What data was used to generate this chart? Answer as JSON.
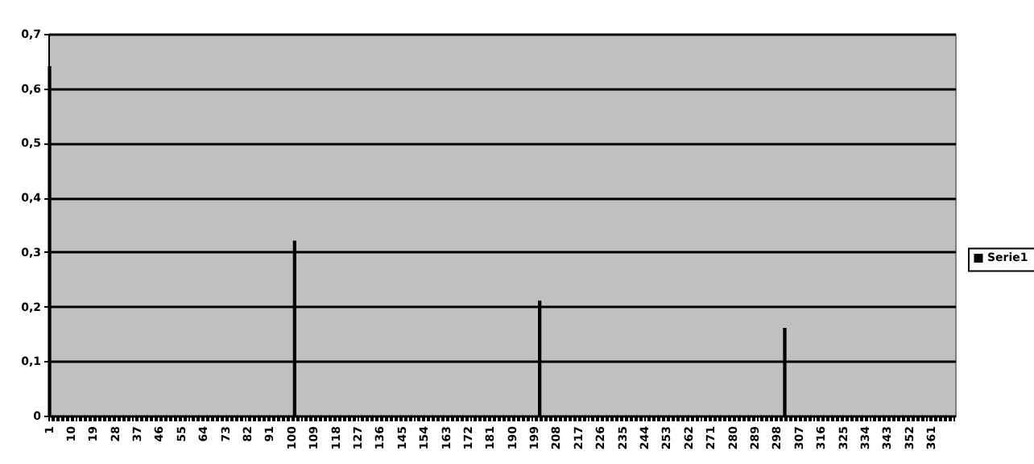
{
  "chart_data": {
    "type": "bar",
    "categories": [
      "1",
      null,
      null,
      null,
      null,
      null,
      null,
      null,
      null,
      "10",
      null,
      null,
      null,
      null,
      null,
      null,
      null,
      null,
      "19",
      null,
      null,
      null,
      null,
      null,
      null,
      null,
      null,
      "28",
      null,
      null,
      null,
      null,
      null,
      null,
      null,
      null,
      "37",
      null,
      null,
      null,
      null,
      null,
      null,
      null,
      null,
      "46",
      null,
      null,
      null,
      null,
      null,
      null,
      null,
      null,
      "55",
      null,
      null,
      null,
      null,
      null,
      null,
      null,
      null,
      "64",
      null,
      null,
      null,
      null,
      null,
      null,
      null,
      null,
      "73",
      null,
      null,
      null,
      null,
      null,
      null,
      null,
      null,
      "82",
      null,
      null,
      null,
      null,
      null,
      null,
      null,
      null,
      "91",
      null,
      null,
      null,
      null,
      null,
      null,
      null,
      null,
      "100",
      null,
      null,
      null,
      null,
      null,
      null,
      null,
      null,
      "109",
      null,
      null,
      null,
      null,
      null,
      null,
      null,
      null,
      "118",
      null,
      null,
      null,
      null,
      null,
      null,
      null,
      null,
      "127",
      null,
      null,
      null,
      null,
      null,
      null,
      null,
      null,
      "136",
      null,
      null,
      null,
      null,
      null,
      null,
      null,
      null,
      "145",
      null,
      null,
      null,
      null,
      null,
      null,
      null,
      null,
      "154",
      null,
      null,
      null,
      null,
      null,
      null,
      null,
      null,
      "163",
      null,
      null,
      null,
      null,
      null,
      null,
      null,
      null,
      "172",
      null,
      null,
      null,
      null,
      null,
      null,
      null,
      null,
      "181",
      null,
      null,
      null,
      null,
      null,
      null,
      null,
      null,
      "190",
      null,
      null,
      null,
      null,
      null,
      null,
      null,
      null,
      "199",
      null,
      null,
      null,
      null,
      null,
      null,
      null,
      null,
      "208",
      null,
      null,
      null,
      null,
      null,
      null,
      null,
      null,
      "217",
      null,
      null,
      null,
      null,
      null,
      null,
      null,
      null,
      "226",
      null,
      null,
      null,
      null,
      null,
      null,
      null,
      null,
      "235",
      null,
      null,
      null,
      null,
      null,
      null,
      null,
      null,
      "244",
      null,
      null,
      null,
      null,
      null,
      null,
      null,
      null,
      "253",
      null,
      null,
      null,
      null,
      null,
      null,
      null,
      null,
      "262",
      null,
      null,
      null,
      null,
      null,
      null,
      null,
      null,
      "271",
      null,
      null,
      null,
      null,
      null,
      null,
      null,
      null,
      "280",
      null,
      null,
      null,
      null,
      null,
      null,
      null,
      null,
      "289",
      null,
      null,
      null,
      null,
      null,
      null,
      null,
      null,
      "298",
      null,
      null,
      null,
      null,
      null,
      null,
      null,
      null,
      "307",
      null,
      null,
      null,
      null,
      null,
      null,
      null,
      null,
      "316",
      null,
      null,
      null,
      null,
      null,
      null,
      null,
      null,
      "325",
      null,
      null,
      null,
      null,
      null,
      null,
      null,
      null,
      "334",
      null,
      null,
      null,
      null,
      null,
      null,
      null,
      null,
      "343",
      null,
      null,
      null,
      null,
      null,
      null,
      null,
      null,
      "352",
      null,
      null,
      null,
      null,
      null,
      null,
      null,
      null,
      "361",
      null,
      null,
      null,
      null,
      null,
      null,
      null,
      null,
      null
    ],
    "series": [
      {
        "name": "Serie1",
        "color": "#000000",
        "values": [
          0.64,
          null,
          null,
          null,
          null,
          null,
          null,
          null,
          null,
          null,
          null,
          null,
          null,
          null,
          null,
          null,
          null,
          null,
          null,
          null,
          null,
          null,
          null,
          null,
          null,
          null,
          null,
          null,
          null,
          null,
          null,
          null,
          null,
          null,
          null,
          null,
          null,
          null,
          null,
          null,
          null,
          null,
          null,
          null,
          null,
          null,
          null,
          null,
          null,
          null,
          null,
          null,
          null,
          null,
          null,
          null,
          null,
          null,
          null,
          null,
          null,
          null,
          null,
          null,
          null,
          null,
          null,
          null,
          null,
          null,
          null,
          null,
          null,
          null,
          null,
          null,
          null,
          null,
          null,
          null,
          null,
          null,
          null,
          null,
          null,
          null,
          null,
          null,
          null,
          null,
          null,
          null,
          null,
          null,
          null,
          null,
          null,
          null,
          null,
          null,
          0.32,
          null,
          null,
          null,
          null,
          null,
          null,
          null,
          null,
          null,
          null,
          null,
          null,
          null,
          null,
          null,
          null,
          null,
          null,
          null,
          null,
          null,
          null,
          null,
          null,
          null,
          null,
          null,
          null,
          null,
          null,
          null,
          null,
          null,
          null,
          null,
          null,
          null,
          null,
          null,
          null,
          null,
          null,
          null,
          null,
          null,
          null,
          null,
          null,
          null,
          null,
          null,
          null,
          null,
          null,
          null,
          null,
          null,
          null,
          null,
          null,
          null,
          null,
          null,
          null,
          null,
          null,
          null,
          null,
          null,
          null,
          null,
          null,
          null,
          null,
          null,
          null,
          null,
          null,
          null,
          null,
          null,
          null,
          null,
          null,
          null,
          null,
          null,
          null,
          null,
          null,
          null,
          null,
          null,
          null,
          null,
          null,
          null,
          null,
          null,
          0.21,
          null,
          null,
          null,
          null,
          null,
          null,
          null,
          null,
          null,
          null,
          null,
          null,
          null,
          null,
          null,
          null,
          null,
          null,
          null,
          null,
          null,
          null,
          null,
          null,
          null,
          null,
          null,
          null,
          null,
          null,
          null,
          null,
          null,
          null,
          null,
          null,
          null,
          null,
          null,
          null,
          null,
          null,
          null,
          null,
          null,
          null,
          null,
          null,
          null,
          null,
          null,
          null,
          null,
          null,
          null,
          null,
          null,
          null,
          null,
          null,
          null,
          null,
          null,
          null,
          null,
          null,
          null,
          null,
          null,
          null,
          null,
          null,
          null,
          null,
          null,
          null,
          null,
          null,
          null,
          null,
          null,
          null,
          null,
          null,
          null,
          null,
          null,
          null,
          null,
          null,
          null,
          null,
          null,
          null,
          null,
          null,
          null,
          null,
          null,
          0.16,
          null,
          null,
          null,
          null,
          null,
          null,
          null,
          null,
          null,
          null,
          null,
          null,
          null,
          null,
          null,
          null,
          null,
          null,
          null,
          null,
          null,
          null,
          null,
          null,
          null,
          null,
          null,
          null,
          null,
          null,
          null,
          null,
          null,
          null,
          null,
          null,
          null,
          null,
          null,
          null,
          null,
          null,
          null,
          null,
          null,
          null,
          null,
          null,
          null,
          null,
          null,
          null,
          null,
          null,
          null,
          null,
          null,
          null,
          null,
          null,
          null,
          null,
          null,
          null,
          null,
          null,
          null,
          null,
          null
        ]
      }
    ],
    "ylim": [
      0,
      0.7
    ],
    "yticks": [
      0,
      {
        "value": 0.1,
        "label": "0,1"
      },
      {
        "value": 0.2,
        "label": "0,2"
      },
      {
        "value": 0.3,
        "label": "0,3"
      },
      {
        "value": 0.4,
        "label": "0,4"
      },
      {
        "value": 0.5,
        "label": "0,5"
      },
      {
        "value": 0.6,
        "label": "0,6"
      },
      {
        "value": 0.7,
        "label": "0,7"
      }
    ],
    "grid": "y",
    "legend": "right"
  }
}
